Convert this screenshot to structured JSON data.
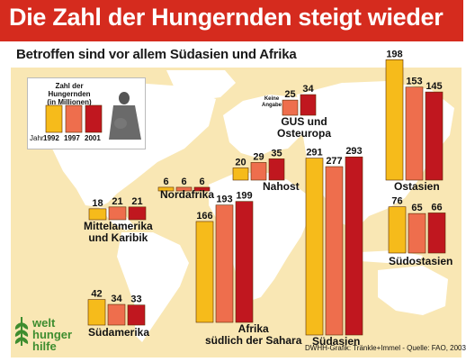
{
  "header": {
    "title": "Die Zahl der Hungernden steigt wieder",
    "subtitle": "Betroffen sind vor allem Südasien und Afrika"
  },
  "legend": {
    "title_line1": "Zahl der Hungernden",
    "title_line2": "(in Millionen)",
    "year_label": "Jahr",
    "years": [
      "1992",
      "1997",
      "2001"
    ]
  },
  "source": "DWHH-Grafik: Tränkle+Immel - Quelle: FAO, 2003",
  "logo": {
    "line1": "welt",
    "line2": "hunger",
    "line3": "hilfe"
  },
  "colors": {
    "1992": "#f6bb1b",
    "1997": "#ee6e4d",
    "2001": "#c0171f",
    "background": "#f9e7b4",
    "map": "#ffffff",
    "header": "#d52b1e"
  },
  "chart_data": {
    "type": "bar",
    "title": "Die Zahl der Hungernden steigt wieder",
    "subtitle": "Betroffen sind vor allem Südasien und Afrika",
    "unit": "Zahl der Hungernden (in Millionen)",
    "years": [
      "1992",
      "1997",
      "2001"
    ],
    "regions": [
      {
        "name": "Ostasien",
        "values": [
          198,
          153,
          145
        ]
      },
      {
        "name": "Südostasien",
        "values": [
          76,
          65,
          66
        ]
      },
      {
        "name": "Südasien",
        "values": [
          291,
          277,
          293
        ]
      },
      {
        "name": "GUS und Osteuropa",
        "values": [
          null,
          25,
          34
        ],
        "note": "Keine Angabe"
      },
      {
        "name": "Nahost",
        "values": [
          20,
          29,
          35
        ]
      },
      {
        "name": "Nordafrika",
        "values": [
          6,
          6,
          6
        ]
      },
      {
        "name": "Afrika südlich der Sahara",
        "values": [
          166,
          193,
          199
        ]
      },
      {
        "name": "Mittelamerika und Karibik",
        "values": [
          18,
          21,
          21
        ]
      },
      {
        "name": "Südamerika",
        "values": [
          42,
          34,
          33
        ]
      }
    ]
  }
}
